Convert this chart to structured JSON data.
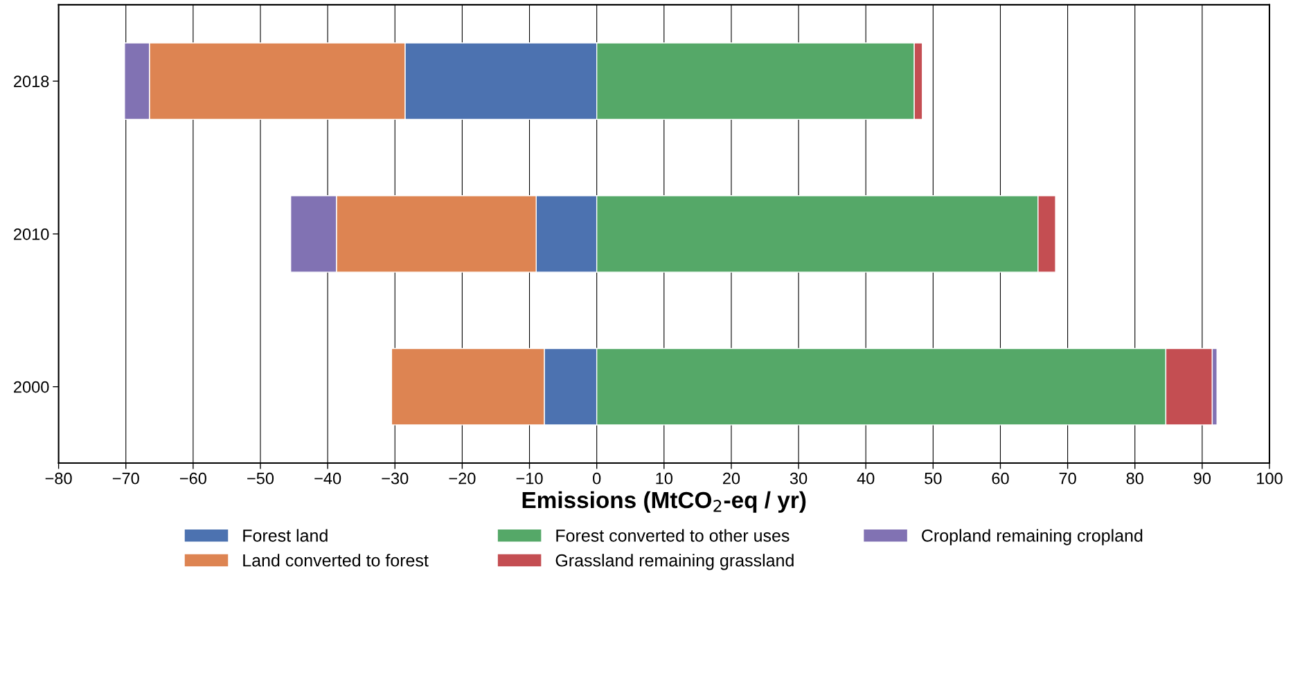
{
  "chart_data": {
    "type": "bar",
    "orientation": "horizontal",
    "stacked": true,
    "xlabel": "Emissions (MtCO$_{2}$-eq / yr)",
    "categories": [
      "2018",
      "2010",
      "2000"
    ],
    "series": [
      {
        "name": "Forest land",
        "color": "#4c72b0",
        "values": [
          -28.5,
          -9.0,
          -7.8
        ]
      },
      {
        "name": "Land converted to forest",
        "color": "#dd8452",
        "values": [
          -38.0,
          -29.7,
          -22.7
        ]
      },
      {
        "name": "Forest converted to other uses",
        "color": "#55a868",
        "values": [
          47.2,
          65.6,
          84.6
        ]
      },
      {
        "name": "Grassland remaining grassland",
        "color": "#c44e52",
        "values": [
          1.2,
          2.6,
          6.9
        ]
      },
      {
        "name": "Cropland remaining cropland",
        "color": "#8172b3",
        "values": [
          -3.7,
          -6.8,
          0.7
        ]
      }
    ],
    "xlim": [
      -80,
      100
    ],
    "xticks": [
      {
        "value": -80,
        "label": "−80"
      },
      {
        "value": -70,
        "label": "−70"
      },
      {
        "value": -60,
        "label": "−60"
      },
      {
        "value": -50,
        "label": "−50"
      },
      {
        "value": -40,
        "label": "−40"
      },
      {
        "value": -30,
        "label": "−30"
      },
      {
        "value": -20,
        "label": "−20"
      },
      {
        "value": -10,
        "label": "−10"
      },
      0,
      10,
      20,
      30,
      40,
      50,
      60,
      70,
      80,
      90,
      100
    ],
    "grid": "x",
    "legend": "bottom"
  }
}
